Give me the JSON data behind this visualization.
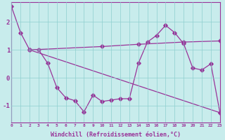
{
  "xlabel": "Windchill (Refroidissement éolien,°C)",
  "bg_color": "#c8ecec",
  "line_color": "#993399",
  "xlim": [
    0,
    23
  ],
  "ylim": [
    -1.6,
    2.7
  ],
  "yticks": [
    -1,
    0,
    1,
    2
  ],
  "xticks": [
    0,
    1,
    2,
    3,
    4,
    5,
    6,
    7,
    8,
    9,
    10,
    11,
    12,
    13,
    14,
    15,
    16,
    17,
    18,
    19,
    20,
    21,
    22,
    23
  ],
  "curve1_x": [
    0,
    1,
    2,
    3,
    4,
    5,
    6,
    7,
    8,
    9,
    10,
    11,
    12,
    13,
    14,
    15,
    16,
    17,
    18,
    19,
    20,
    21,
    22,
    23
  ],
  "curve1_y": [
    2.55,
    1.62,
    1.0,
    1.0,
    0.52,
    -0.35,
    -0.72,
    -0.82,
    -1.22,
    -0.62,
    -0.85,
    -0.8,
    -0.75,
    -0.75,
    0.52,
    1.28,
    1.52,
    1.88,
    1.62,
    1.22,
    0.35,
    0.28,
    0.5,
    -1.25
  ],
  "curve2_x": [
    2,
    10,
    14,
    19,
    23
  ],
  "curve2_y": [
    1.0,
    1.12,
    1.2,
    1.28,
    1.32
  ],
  "curve3_x": [
    2,
    23
  ],
  "curve3_y": [
    1.0,
    -1.25
  ]
}
